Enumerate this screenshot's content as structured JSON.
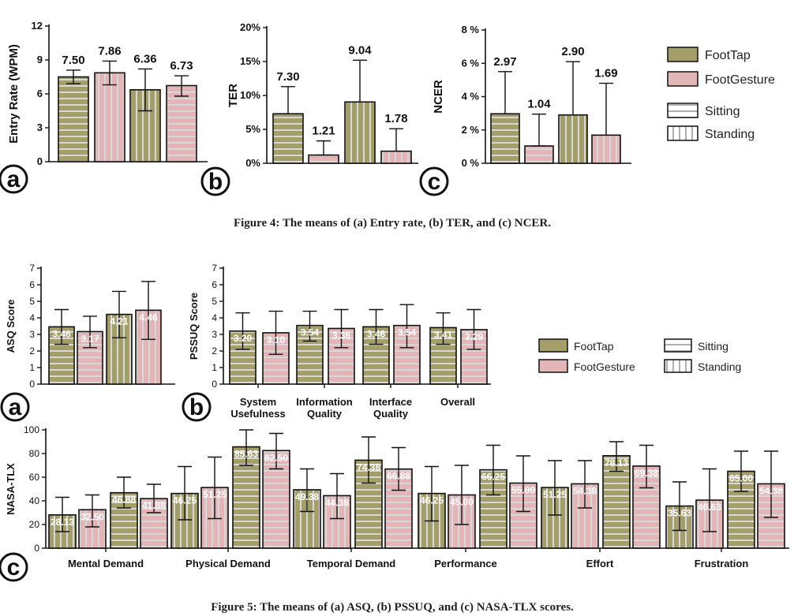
{
  "colors": {
    "foottap": "#a39e6a",
    "footgesture": "#e2b5b7",
    "stripe": "#d8d8d8",
    "axis": "#111111"
  },
  "figure4": {
    "caption": "Figure 4: The means of (a) Entry rate, (b) TER, and (c) NCER.",
    "legend": {
      "foottap": "FootTap",
      "footgesture": "FootGesture",
      "sitting": "Sitting",
      "standing": "Standing"
    }
  },
  "figure5": {
    "caption": "Figure 5: The means of (a) ASQ, (b) PSSUQ, and (c) NASA-TLX scores.",
    "legend": {
      "foottap": "FootTap",
      "footgesture": "FootGesture",
      "sitting": "Sitting",
      "standing": "Standing"
    }
  },
  "chart_data": [
    {
      "id": "entry_rate",
      "panel": "a",
      "type": "bar",
      "ylabel": "Entry Rate (WPM)",
      "ylim": [
        0,
        12
      ],
      "yticks": [
        0,
        3,
        6,
        9,
        12
      ],
      "ytick_labels": [
        "0",
        "3",
        "6",
        "9",
        "12"
      ],
      "bars": [
        {
          "technique": "FootTap",
          "posture": "Sitting",
          "value": 7.5,
          "label": "7.50",
          "err_low": 6.9,
          "err_high": 8.1
        },
        {
          "technique": "FootGesture",
          "posture": "Standing",
          "value": 7.86,
          "label": "7.86",
          "err_low": 6.8,
          "err_high": 8.9
        },
        {
          "technique": "FootTap",
          "posture": "Standing",
          "value": 6.36,
          "label": "6.36",
          "err_low": 4.5,
          "err_high": 8.2
        },
        {
          "technique": "FootGesture",
          "posture": "Sitting",
          "value": 6.73,
          "label": "6.73",
          "err_low": 5.8,
          "err_high": 7.6
        }
      ]
    },
    {
      "id": "ter",
      "panel": "b",
      "type": "bar",
      "ylabel": "TER",
      "ylim": [
        0,
        20
      ],
      "yticks": [
        0,
        5,
        10,
        15,
        20
      ],
      "ytick_labels": [
        "0%",
        "5%",
        "10%",
        "15%",
        "20%"
      ],
      "bars": [
        {
          "technique": "FootTap",
          "posture": "Sitting",
          "value": 7.3,
          "label": "7.30",
          "err_low": 7.3,
          "err_high": 11.3
        },
        {
          "technique": "FootGesture",
          "posture": "Sitting",
          "value": 1.21,
          "label": "1.21",
          "err_low": 1.21,
          "err_high": 3.3
        },
        {
          "technique": "FootTap",
          "posture": "Standing",
          "value": 9.04,
          "label": "9.04",
          "err_low": 9.04,
          "err_high": 15.2
        },
        {
          "technique": "FootGesture",
          "posture": "Standing",
          "value": 1.78,
          "label": "1.78",
          "err_low": 1.78,
          "err_high": 5.1
        }
      ]
    },
    {
      "id": "ncer",
      "panel": "c",
      "type": "bar",
      "ylabel": "NCER",
      "ylim": [
        0,
        8
      ],
      "yticks": [
        0,
        2,
        4,
        6,
        8
      ],
      "ytick_labels": [
        "0 %",
        "2 %",
        "4 %",
        "6 %",
        "8 %"
      ],
      "bars": [
        {
          "technique": "FootTap",
          "posture": "Sitting",
          "value": 2.97,
          "label": "2.97",
          "err_low": 2.97,
          "err_high": 5.5
        },
        {
          "technique": "FootGesture",
          "posture": "Sitting",
          "value": 1.04,
          "label": "1.04",
          "err_low": 1.04,
          "err_high": 2.95
        },
        {
          "technique": "FootTap",
          "posture": "Standing",
          "value": 2.9,
          "label": "2.90",
          "err_low": 2.9,
          "err_high": 6.1
        },
        {
          "technique": "FootGesture",
          "posture": "Standing",
          "value": 1.69,
          "label": "1.69",
          "err_low": 1.69,
          "err_high": 4.8
        }
      ]
    },
    {
      "id": "asq",
      "panel": "a",
      "type": "bar",
      "ylabel": "ASQ Score",
      "ylim": [
        0,
        7
      ],
      "yticks": [
        0,
        1,
        2,
        3,
        4,
        5,
        6,
        7
      ],
      "ytick_labels": [
        "0",
        "1",
        "2",
        "3",
        "4",
        "5",
        "6",
        "7"
      ],
      "bars": [
        {
          "technique": "FootTap",
          "posture": "Sitting",
          "value": 3.46,
          "label": "3.46",
          "err_low": 2.4,
          "err_high": 4.5
        },
        {
          "technique": "FootGesture",
          "posture": "Sitting",
          "value": 3.17,
          "label": "3.17",
          "err_low": 2.2,
          "err_high": 4.1
        },
        {
          "technique": "FootTap",
          "posture": "Standing",
          "value": 4.21,
          "label": "4.21",
          "err_low": 2.8,
          "err_high": 5.6
        },
        {
          "technique": "FootGesture",
          "posture": "Standing",
          "value": 4.46,
          "label": "4.46",
          "err_low": 2.7,
          "err_high": 6.2
        }
      ]
    },
    {
      "id": "pssuq",
      "panel": "b",
      "type": "bar",
      "ylabel": "PSSUQ Score",
      "ylim": [
        0,
        7
      ],
      "yticks": [
        0,
        1,
        2,
        3,
        4,
        5,
        6,
        7
      ],
      "ytick_labels": [
        "0",
        "1",
        "2",
        "3",
        "4",
        "5",
        "6",
        "7"
      ],
      "categories": [
        "System Usefulness",
        "Information Quality",
        "Interface Quality",
        "Overall"
      ],
      "groups": [
        {
          "category": "System\nUsefulness",
          "bars": [
            {
              "technique": "FootTap",
              "posture": "Sitting",
              "value": 3.2,
              "label": "3.20",
              "err_low": 2.1,
              "err_high": 4.3
            },
            {
              "technique": "FootGesture",
              "posture": "Sitting",
              "value": 3.1,
              "label": "3.10",
              "err_low": 1.8,
              "err_high": 4.4
            }
          ]
        },
        {
          "category": "Information\nQuality",
          "bars": [
            {
              "technique": "FootTap",
              "posture": "Sitting",
              "value": 3.54,
              "label": "3.54",
              "err_low": 2.6,
              "err_high": 4.4
            },
            {
              "technique": "FootGesture",
              "posture": "Sitting",
              "value": 3.36,
              "label": "3.36",
              "err_low": 2.2,
              "err_high": 4.5
            }
          ]
        },
        {
          "category": "Interface\nQuality",
          "bars": [
            {
              "technique": "FootTap",
              "posture": "Sitting",
              "value": 3.46,
              "label": "3.46",
              "err_low": 2.4,
              "err_high": 4.5
            },
            {
              "technique": "FootGesture",
              "posture": "Sitting",
              "value": 3.54,
              "label": "3.54",
              "err_low": 2.2,
              "err_high": 4.8
            }
          ]
        },
        {
          "category": "Overall",
          "bars": [
            {
              "technique": "FootTap",
              "posture": "Sitting",
              "value": 3.41,
              "label": "3.41",
              "err_low": 2.4,
              "err_high": 4.3
            },
            {
              "technique": "FootGesture",
              "posture": "Sitting",
              "value": 3.29,
              "label": "3.29",
              "err_low": 2.1,
              "err_high": 4.5
            }
          ]
        }
      ]
    },
    {
      "id": "nasa_tlx",
      "panel": "c",
      "type": "bar",
      "ylabel": "NASA-TLX",
      "ylim": [
        0,
        100
      ],
      "yticks": [
        0,
        20,
        40,
        60,
        80,
        100
      ],
      "ytick_labels": [
        "0",
        "20",
        "40",
        "60",
        "80",
        "100"
      ],
      "categories": [
        "Mental Demand",
        "Physical Demand",
        "Temporal Demand",
        "Performance",
        "Effort",
        "Frustration"
      ],
      "groups": [
        {
          "category": "Mental Demand",
          "bars": [
            {
              "technique": "FootTap",
              "posture": "Standing",
              "value": 28.13,
              "label": "28.13",
              "err_low": 14,
              "err_high": 43
            },
            {
              "technique": "FootGesture",
              "posture": "Standing",
              "value": 32.5,
              "label": "32.50",
              "err_low": 18,
              "err_high": 45
            },
            {
              "technique": "FootTap",
              "posture": "Sitting",
              "value": 46.88,
              "label": "46.88",
              "err_low": 34,
              "err_high": 60
            },
            {
              "technique": "FootGesture",
              "posture": "Sitting",
              "value": 41.88,
              "label": "41.88",
              "err_low": 30,
              "err_high": 54
            }
          ]
        },
        {
          "category": "Physical Demand",
          "bars": [
            {
              "technique": "FootTap",
              "posture": "Standing",
              "value": 46.25,
              "label": "46.25",
              "err_low": 24,
              "err_high": 69
            },
            {
              "technique": "FootGesture",
              "posture": "Standing",
              "value": 51.25,
              "label": "51.25",
              "err_low": 25,
              "err_high": 77
            },
            {
              "technique": "FootTap",
              "posture": "Sitting",
              "value": 85.63,
              "label": "85.63",
              "err_low": 70,
              "err_high": 100
            },
            {
              "technique": "FootGesture",
              "posture": "Sitting",
              "value": 82.5,
              "label": "82.50",
              "err_low": 67,
              "err_high": 97
            }
          ]
        },
        {
          "category": "Temporal Demand",
          "bars": [
            {
              "technique": "FootTap",
              "posture": "Standing",
              "value": 49.38,
              "label": "49.38",
              "err_low": 31,
              "err_high": 67
            },
            {
              "technique": "FootGesture",
              "posture": "Standing",
              "value": 44.38,
              "label": "44.38",
              "err_low": 25,
              "err_high": 63
            },
            {
              "technique": "FootTap",
              "posture": "Sitting",
              "value": 74.38,
              "label": "74.38",
              "err_low": 55,
              "err_high": 94
            },
            {
              "technique": "FootGesture",
              "posture": "Sitting",
              "value": 66.88,
              "label": "66.88",
              "err_low": 49,
              "err_high": 85
            }
          ]
        },
        {
          "category": "Performance",
          "bars": [
            {
              "technique": "FootTap",
              "posture": "Standing",
              "value": 46.25,
              "label": "46.25",
              "err_low": 23,
              "err_high": 69
            },
            {
              "technique": "FootGesture",
              "posture": "Standing",
              "value": 45.0,
              "label": "45.00",
              "err_low": 20,
              "err_high": 70
            },
            {
              "technique": "FootTap",
              "posture": "Sitting",
              "value": 66.25,
              "label": "66.25",
              "err_low": 45,
              "err_high": 87
            },
            {
              "technique": "FootGesture",
              "posture": "Sitting",
              "value": 55.0,
              "label": "55.00",
              "err_low": 31,
              "err_high": 78
            }
          ]
        },
        {
          "category": "Effort",
          "bars": [
            {
              "technique": "FootTap",
              "posture": "Standing",
              "value": 51.25,
              "label": "51.25",
              "err_low": 28,
              "err_high": 74
            },
            {
              "technique": "FootGesture",
              "posture": "Standing",
              "value": 54.38,
              "label": "54.38",
              "err_low": 34,
              "err_high": 74
            },
            {
              "technique": "FootTap",
              "posture": "Sitting",
              "value": 78.13,
              "label": "78.13",
              "err_low": 65,
              "err_high": 90
            },
            {
              "technique": "FootGesture",
              "posture": "Sitting",
              "value": 69.38,
              "label": "69.38",
              "err_low": 51,
              "err_high": 87
            }
          ]
        },
        {
          "category": "Frustration",
          "bars": [
            {
              "technique": "FootTap",
              "posture": "Standing",
              "value": 35.63,
              "label": "35.63",
              "err_low": 15,
              "err_high": 56
            },
            {
              "technique": "FootGesture",
              "posture": "Standing",
              "value": 40.63,
              "label": "40.63",
              "err_low": 14,
              "err_high": 67
            },
            {
              "technique": "FootTap",
              "posture": "Sitting",
              "value": 65.0,
              "label": "65.00",
              "err_low": 48,
              "err_high": 82
            },
            {
              "technique": "FootGesture",
              "posture": "Sitting",
              "value": 54.38,
              "label": "54.38",
              "err_low": 26,
              "err_high": 82
            }
          ]
        }
      ]
    }
  ]
}
